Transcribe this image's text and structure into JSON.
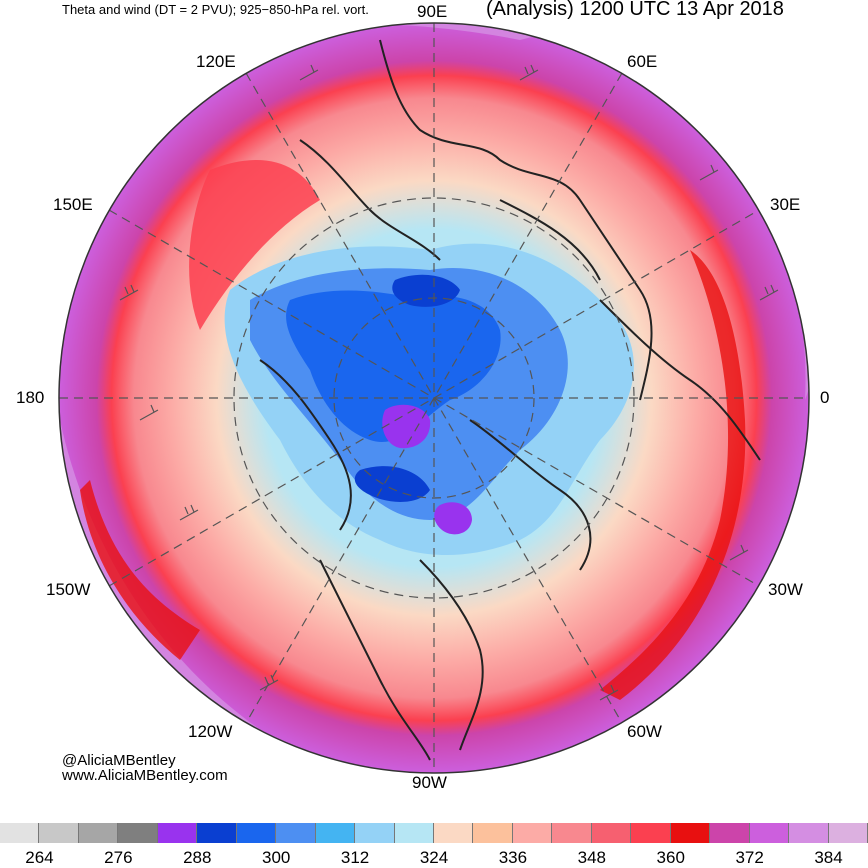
{
  "header": {
    "left_title": "Theta and wind (DT = 2 PVU); 925−850-hPa rel. vort.",
    "right_title": "(Analysis) 1200 UTC 13 Apr 2018"
  },
  "longitude_labels": {
    "e90": "90E",
    "e120": "120E",
    "e60": "60E",
    "e150": "150E",
    "e30": "30E",
    "d180": "180",
    "d0": "0",
    "w150": "150W",
    "w30": "30W",
    "w120": "120W",
    "w60": "60W",
    "w90": "90W"
  },
  "credits": {
    "handle": "@AliciaMBentley",
    "website": "www.AliciaMBentley.com"
  },
  "colorbar": {
    "colors": [
      "#e2e2e2",
      "#c8c8c8",
      "#a6a6a6",
      "#7f7f7f",
      "#9933ee",
      "#0a3fd1",
      "#1a66ee",
      "#4d8ff2",
      "#44b4f2",
      "#94d2f6",
      "#b6e6f4",
      "#fbd9c4",
      "#fcc19c",
      "#fcaba6",
      "#f8888f",
      "#f66070",
      "#fb4050",
      "#e81010",
      "#cc44aa",
      "#cc5fdd",
      "#d48ee2",
      "#dcb0e0"
    ],
    "tick_labels": [
      "264",
      "276",
      "288",
      "300",
      "312",
      "324",
      "336",
      "348",
      "360",
      "372",
      "384"
    ]
  },
  "map_colors": {
    "warm_outer": "#cc5fdd",
    "warm_ring": "#fb4050",
    "mid": "#fcaba6",
    "cool": "#94d2f6",
    "cold": "#1a66ee",
    "coldest": "#9933ee",
    "coastline": "#222222"
  }
}
